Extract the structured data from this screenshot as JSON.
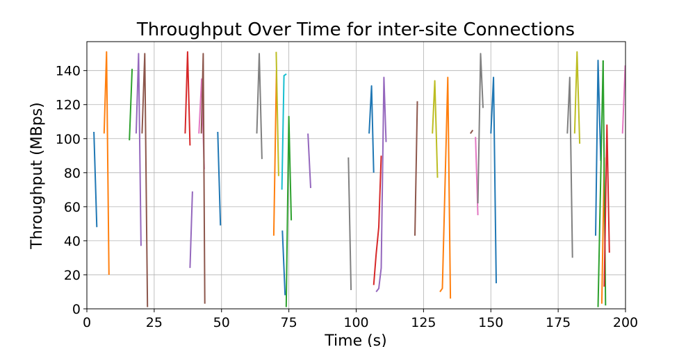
{
  "chart_data": {
    "type": "line",
    "title": "Throughput Over Time for inter-site Connections",
    "xlabel": "Time (s)",
    "ylabel": "Throughput (MBps)",
    "xlim": [
      0,
      200
    ],
    "ylim": [
      0,
      157
    ],
    "xticks": [
      0,
      25,
      50,
      75,
      100,
      125,
      150,
      175,
      200
    ],
    "yticks": [
      0,
      20,
      40,
      60,
      80,
      100,
      120,
      140
    ],
    "grid": true,
    "legend": "none",
    "series": [
      {
        "color": "#1f77b4",
        "x": [
          2.6,
          3.7
        ],
        "y": [
          104,
          48
        ]
      },
      {
        "color": "#ff7f0e",
        "x": [
          6.4,
          7.3,
          8.2
        ],
        "y": [
          103,
          151,
          20
        ]
      },
      {
        "color": "#2ca02c",
        "x": [
          15.8,
          16.8
        ],
        "y": [
          99,
          141
        ]
      },
      {
        "color": "#9467bd",
        "x": [
          18.3,
          19.2,
          20.1
        ],
        "y": [
          103,
          150,
          37
        ]
      },
      {
        "color": "#8c564b",
        "x": [
          20.5,
          21.5,
          22.5
        ],
        "y": [
          103,
          150,
          1
        ]
      },
      {
        "color": "#d62728",
        "x": [
          36.5,
          37.4,
          38.3
        ],
        "y": [
          103,
          151,
          96
        ]
      },
      {
        "color": "#9467bd",
        "x": [
          38.3,
          39.2
        ],
        "y": [
          24,
          69
        ]
      },
      {
        "color": "#e377c2",
        "x": [
          41.6,
          42.6,
          43.6
        ],
        "y": [
          103,
          135,
          82
        ]
      },
      {
        "color": "#8c564b",
        "x": [
          42.5,
          43.2,
          43.8
        ],
        "y": [
          103,
          150,
          3
        ]
      },
      {
        "color": "#1f77b4",
        "x": [
          48.6,
          49.6
        ],
        "y": [
          104,
          49
        ]
      },
      {
        "color": "#7f7f7f",
        "x": [
          63.1,
          64.0,
          65.0
        ],
        "y": [
          103,
          150,
          88
        ]
      },
      {
        "color": "#ff7f0e",
        "x": [
          69.4,
          70.4
        ],
        "y": [
          43,
          140
        ]
      },
      {
        "color": "#bcbd22",
        "x": [
          70.3,
          71.2
        ],
        "y": [
          151,
          78
        ]
      },
      {
        "color": "#17becf",
        "x": [
          72.4,
          73.2,
          74.1
        ],
        "y": [
          70,
          137,
          138
        ]
      },
      {
        "color": "#1f77b4",
        "x": [
          72.6,
          73.6
        ],
        "y": [
          46,
          8
        ]
      },
      {
        "color": "#2ca02c",
        "x": [
          74.0,
          75.0,
          75.9
        ],
        "y": [
          1,
          113,
          52
        ]
      },
      {
        "color": "#9467bd",
        "x": [
          82.1,
          83.1
        ],
        "y": [
          103,
          71
        ]
      },
      {
        "color": "#7f7f7f",
        "x": [
          97.1,
          98.1
        ],
        "y": [
          89,
          11
        ]
      },
      {
        "color": "#1f77b4",
        "x": [
          104.8,
          105.7,
          106.5
        ],
        "y": [
          103,
          131,
          80
        ]
      },
      {
        "color": "#d62728",
        "x": [
          106.5,
          107.4,
          108.4,
          109.3
        ],
        "y": [
          14,
          32,
          48,
          90
        ]
      },
      {
        "color": "#9467bd",
        "x": [
          107.4,
          108.4,
          109.3,
          110.3,
          111.1
        ],
        "y": [
          10,
          12,
          24,
          136,
          98
        ]
      },
      {
        "color": "#8c564b",
        "x": [
          121.8,
          122.7
        ],
        "y": [
          43,
          122
        ]
      },
      {
        "color": "#bcbd22",
        "x": [
          128.3,
          129.2,
          130.2
        ],
        "y": [
          103,
          134,
          77
        ]
      },
      {
        "color": "#ff7f0e",
        "x": [
          131.1,
          132.0,
          134.0,
          135.0
        ],
        "y": [
          10,
          12,
          136,
          6
        ]
      },
      {
        "color": "#8c564b",
        "x": [
          142.4,
          143.3
        ],
        "y": [
          103,
          105
        ]
      },
      {
        "color": "#e377c2",
        "x": [
          144.3,
          145.2
        ],
        "y": [
          101,
          55
        ]
      },
      {
        "color": "#7f7f7f",
        "x": [
          145.2,
          146.2,
          147.1
        ],
        "y": [
          62,
          150,
          118
        ]
      },
      {
        "color": "#1f77b4",
        "x": [
          150.0,
          151.0,
          152.0
        ],
        "y": [
          103,
          136,
          15
        ]
      },
      {
        "color": "#7f7f7f",
        "x": [
          178.4,
          179.3,
          180.3
        ],
        "y": [
          103,
          136,
          30
        ]
      },
      {
        "color": "#bcbd22",
        "x": [
          181.1,
          182.0,
          183.0
        ],
        "y": [
          103,
          151,
          97
        ]
      },
      {
        "color": "#1f77b4",
        "x": [
          188.9,
          189.8,
          190.8
        ],
        "y": [
          43,
          146,
          87
        ]
      },
      {
        "color": "#2ca02c",
        "x": [
          189.8,
          191.7
        ],
        "y": [
          1,
          146
        ]
      },
      {
        "color": "#ff7f0e",
        "x": [
          191.2,
          192.1
        ],
        "y": [
          3,
          89
        ]
      },
      {
        "color": "#2ca02c",
        "x": [
          191.7,
          192.6
        ],
        "y": [
          146,
          2
        ]
      },
      {
        "color": "#d62728",
        "x": [
          192.1,
          193.1,
          194.0
        ],
        "y": [
          13,
          108,
          33
        ]
      },
      {
        "color": "#e377c2",
        "x": [
          198.9,
          199.9
        ],
        "y": [
          103,
          143
        ]
      }
    ]
  }
}
